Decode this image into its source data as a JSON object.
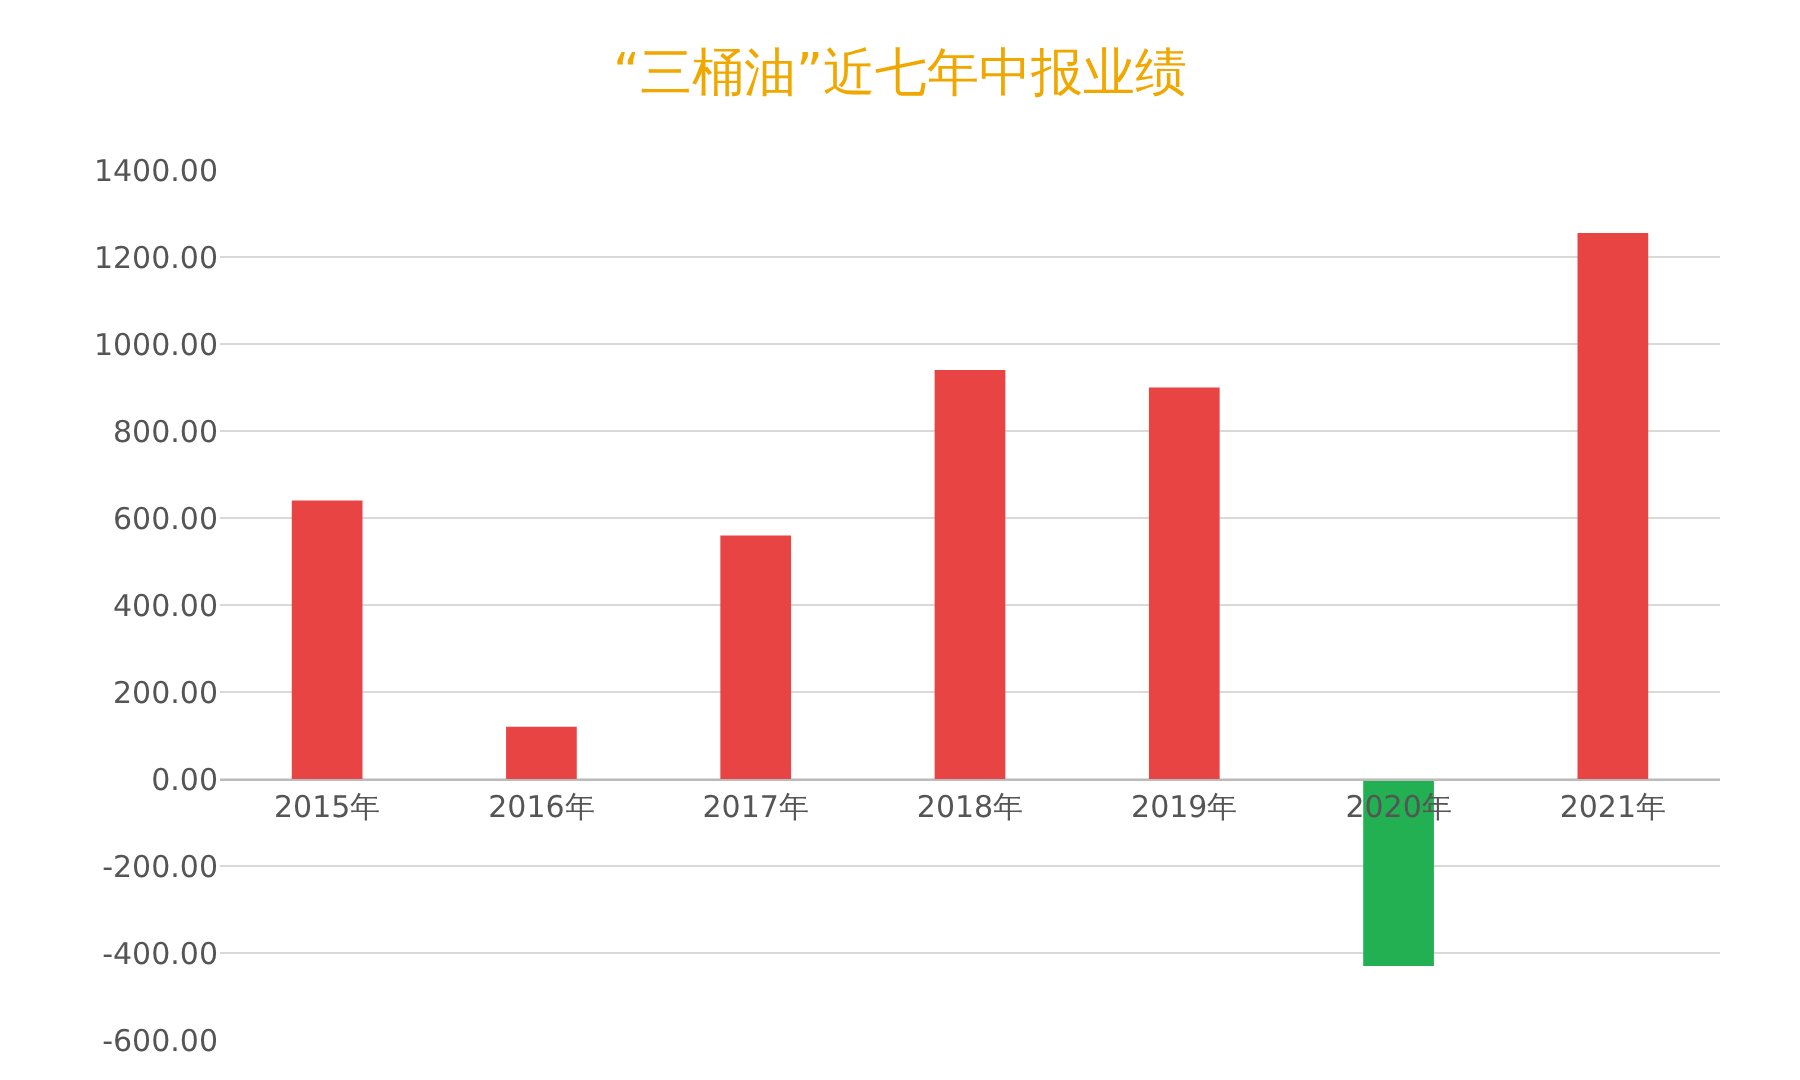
{
  "chart_data": {
    "type": "bar",
    "title": "“三桶油”近七年中报业绩",
    "categories": [
      "2015年",
      "2016年",
      "2017年",
      "2018年",
      "2019年",
      "2020年",
      "2021年"
    ],
    "values": [
      640,
      120,
      560,
      940,
      900,
      -430,
      1255
    ],
    "colors": [
      "#e84444",
      "#e84444",
      "#e84444",
      "#e84444",
      "#e84444",
      "#22b052",
      "#e84444"
    ],
    "ylim": [
      -600,
      1400
    ],
    "yticks": [
      {
        "value": -600,
        "label": "-600.00"
      },
      {
        "value": -400,
        "label": "-400.00"
      },
      {
        "value": -200,
        "label": "-200.00"
      },
      {
        "value": 0,
        "label": "0.00"
      },
      {
        "value": 200,
        "label": "200.00"
      },
      {
        "value": 400,
        "label": "400.00"
      },
      {
        "value": 600,
        "label": "600.00"
      },
      {
        "value": 800,
        "label": "800.00"
      },
      {
        "value": 1000,
        "label": "1000.00"
      },
      {
        "value": 1200,
        "label": "1200.00"
      },
      {
        "value": 1400,
        "label": "1400.00"
      }
    ],
    "grid": "y",
    "legend": false
  }
}
